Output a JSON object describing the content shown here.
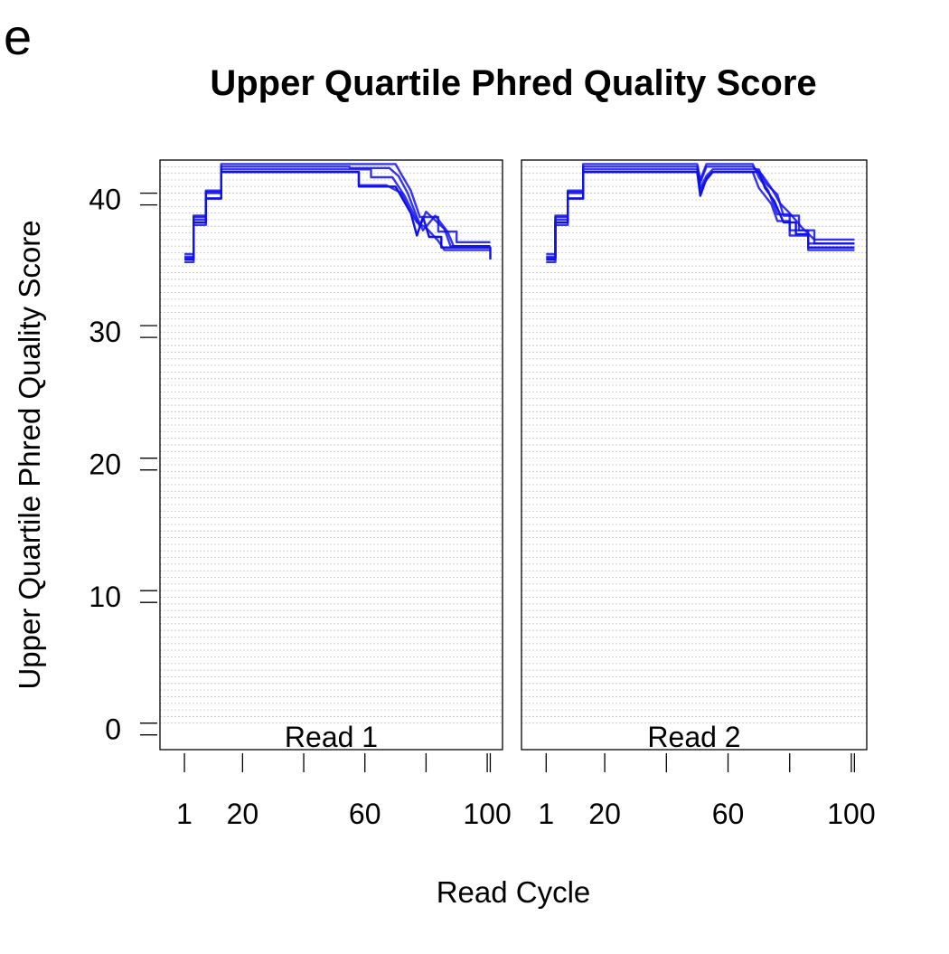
{
  "figure": {
    "panel_letter": "e",
    "background": "#ffffff",
    "series_color": "#1010ee"
  },
  "chart_data": {
    "type": "line",
    "title": "Upper Quartile Phred Quality Score",
    "xlabel": "Read Cycle",
    "ylabel": "Upper Quartile Phred Quality Score",
    "xlim": [
      -7,
      105
    ],
    "ylim": [
      -2,
      42.5
    ],
    "x_ticks": [
      1,
      20,
      40,
      60,
      80,
      100
    ],
    "x_tick_labels": [
      "1",
      "20",
      "",
      "60",
      "",
      "100"
    ],
    "y_ticks": [
      0,
      10,
      20,
      30,
      40
    ],
    "y_tick_labels": [
      "0",
      "10",
      "20",
      "30",
      "40"
    ],
    "grid": true,
    "panels": [
      {
        "label": "Read 1",
        "series": [
          {
            "values": [
              [
                1,
                35
              ],
              [
                4,
                35
              ],
              [
                4,
                37.8
              ],
              [
                8,
                37.8
              ],
              [
                8,
                39.6
              ],
              [
                13,
                39.6
              ],
              [
                13,
                41.6
              ],
              [
                58,
                41.6
              ],
              [
                58,
                40.5
              ],
              [
                70,
                40.5
              ],
              [
                75,
                38.5
              ],
              [
                77,
                36.8
              ],
              [
                79,
                38.2
              ],
              [
                81,
                36.7
              ],
              [
                85,
                36.7
              ],
              [
                85,
                35.9
              ],
              [
                101,
                35.9
              ],
              [
                101,
                35
              ]
            ]
          },
          {
            "values": [
              [
                1,
                35.2
              ],
              [
                4,
                35.2
              ],
              [
                4,
                38
              ],
              [
                8,
                38
              ],
              [
                8,
                40
              ],
              [
                13,
                40
              ],
              [
                13,
                41.8
              ],
              [
                62,
                41.8
              ],
              [
                62,
                41.2
              ],
              [
                69,
                41.2
              ],
              [
                73,
                39.8
              ],
              [
                76,
                38.4
              ],
              [
                78,
                37.5
              ],
              [
                80,
                38.6
              ],
              [
                86,
                37.3
              ],
              [
                88,
                36
              ],
              [
                101,
                36
              ]
            ]
          },
          {
            "values": [
              [
                1,
                35.4
              ],
              [
                4,
                35.4
              ],
              [
                4,
                38.3
              ],
              [
                8,
                38.3
              ],
              [
                8,
                40.2
              ],
              [
                13,
                40.2
              ],
              [
                13,
                42
              ],
              [
                55,
                42
              ],
              [
                55,
                41.9
              ],
              [
                68,
                41.9
              ],
              [
                71,
                41.3
              ],
              [
                74,
                40
              ],
              [
                77,
                38.2
              ],
              [
                79,
                37.2
              ],
              [
                83,
                38.3
              ],
              [
                87,
                37.1
              ],
              [
                89,
                36
              ],
              [
                101,
                36
              ]
            ]
          },
          {
            "values": [
              [
                1,
                34.8
              ],
              [
                4,
                34.8
              ],
              [
                4,
                37.6
              ],
              [
                8,
                37.6
              ],
              [
                8,
                39.6
              ],
              [
                13,
                39.6
              ],
              [
                13,
                41.6
              ],
              [
                58,
                41.6
              ],
              [
                58,
                40.6
              ],
              [
                67,
                40.6
              ],
              [
                72,
                40
              ],
              [
                75,
                38.5
              ],
              [
                77,
                37.8
              ],
              [
                80,
                37.4
              ],
              [
                84,
                36.4
              ],
              [
                86,
                35.7
              ],
              [
                101,
                35.7
              ]
            ]
          },
          {
            "values": [
              [
                1,
                35.1
              ],
              [
                4,
                35.1
              ],
              [
                4,
                38.2
              ],
              [
                8,
                38.2
              ],
              [
                8,
                40.1
              ],
              [
                13,
                40.1
              ],
              [
                13,
                42.2
              ],
              [
                70,
                42.2
              ],
              [
                72,
                41.4
              ],
              [
                75,
                40.2
              ],
              [
                78,
                38.2
              ],
              [
                84,
                38.2
              ],
              [
                84,
                37.1
              ],
              [
                90,
                37.1
              ],
              [
                90,
                36.3
              ],
              [
                101,
                36.3
              ]
            ]
          }
        ]
      },
      {
        "label": "Read 2",
        "series": [
          {
            "values": [
              [
                1,
                35
              ],
              [
                4,
                35
              ],
              [
                4,
                37.8
              ],
              [
                8,
                37.8
              ],
              [
                8,
                39.6
              ],
              [
                13,
                39.6
              ],
              [
                13,
                41.6
              ],
              [
                50,
                41.6
              ],
              [
                51,
                39.8
              ],
              [
                53,
                41.1
              ],
              [
                55,
                41.6
              ],
              [
                70,
                41.6
              ],
              [
                72,
                40.4
              ],
              [
                75,
                39.4
              ],
              [
                78,
                37.8
              ],
              [
                82,
                37.8
              ],
              [
                82,
                36.9
              ],
              [
                86,
                36.9
              ],
              [
                86,
                35.9
              ],
              [
                101,
                35.9
              ]
            ]
          },
          {
            "values": [
              [
                1,
                35.2
              ],
              [
                4,
                35.2
              ],
              [
                4,
                38
              ],
              [
                8,
                38
              ],
              [
                8,
                40
              ],
              [
                13,
                40
              ],
              [
                13,
                41.8
              ],
              [
                50,
                41.8
              ],
              [
                51,
                40.4
              ],
              [
                53,
                41.3
              ],
              [
                55,
                41.8
              ],
              [
                70,
                41.8
              ],
              [
                72,
                40.8
              ],
              [
                76,
                39.9
              ],
              [
                78,
                38.3
              ],
              [
                83,
                38.3
              ],
              [
                83,
                37.2
              ],
              [
                88,
                37.2
              ],
              [
                88,
                36.2
              ],
              [
                101,
                36.2
              ]
            ]
          },
          {
            "values": [
              [
                1,
                35.4
              ],
              [
                4,
                35.4
              ],
              [
                4,
                38.3
              ],
              [
                8,
                38.3
              ],
              [
                8,
                40.2
              ],
              [
                13,
                40.2
              ],
              [
                13,
                42
              ],
              [
                50,
                42
              ],
              [
                51,
                40.8
              ],
              [
                53,
                42
              ],
              [
                68,
                42
              ],
              [
                71,
                41.4
              ],
              [
                74,
                40.4
              ],
              [
                77,
                39.2
              ],
              [
                80,
                38.5
              ],
              [
                84,
                37.4
              ],
              [
                88,
                36.5
              ],
              [
                101,
                36.5
              ]
            ]
          },
          {
            "values": [
              [
                1,
                34.8
              ],
              [
                4,
                34.8
              ],
              [
                4,
                37.6
              ],
              [
                8,
                37.6
              ],
              [
                8,
                39.6
              ],
              [
                13,
                39.6
              ],
              [
                13,
                41.6
              ],
              [
                50,
                41.6
              ],
              [
                51,
                40.2
              ],
              [
                53,
                41
              ],
              [
                55,
                41.6
              ],
              [
                68,
                41.6
              ],
              [
                70,
                40.4
              ],
              [
                74,
                39.2
              ],
              [
                76,
                37.9
              ],
              [
                80,
                37.9
              ],
              [
                80,
                36.8
              ],
              [
                86,
                36.8
              ],
              [
                86,
                35.7
              ],
              [
                101,
                35.7
              ]
            ]
          },
          {
            "values": [
              [
                1,
                35.1
              ],
              [
                4,
                35.1
              ],
              [
                4,
                38.2
              ],
              [
                8,
                38.2
              ],
              [
                8,
                40.1
              ],
              [
                13,
                40.1
              ],
              [
                13,
                42.2
              ],
              [
                50,
                42.2
              ],
              [
                51,
                41
              ],
              [
                53,
                42.2
              ],
              [
                68,
                42.2
              ],
              [
                70,
                41.2
              ],
              [
                73,
                40.2
              ],
              [
                76,
                38.4
              ],
              [
                80,
                38.4
              ],
              [
                80,
                37.2
              ],
              [
                86,
                37.2
              ],
              [
                86,
                36.2
              ],
              [
                101,
                36.2
              ]
            ]
          }
        ]
      }
    ]
  }
}
